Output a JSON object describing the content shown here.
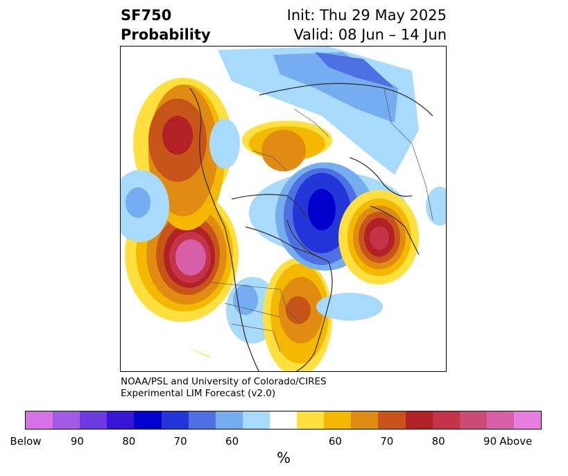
{
  "header": {
    "variable": "SF750",
    "product": "Probability",
    "init": "Init: Thu 29 May 2025",
    "valid": "Valid: 08 Jun – 14 Jun"
  },
  "credit": {
    "line1": "NOAA/PSL and University of Colorado/CIRES",
    "line2": "Experimental LIM Forecast (v2.0)"
  },
  "colorbar": {
    "colors": [
      "#d672e6",
      "#a25ce3",
      "#6d3ae0",
      "#3915d8",
      "#0000cd",
      "#2536d8",
      "#4d70e2",
      "#74aef1",
      "#a8dafb",
      "#ffffff",
      "#ffe03e",
      "#f4b800",
      "#e08c12",
      "#c75519",
      "#b22126",
      "#c43449",
      "#cc4c78",
      "#d860a8",
      "#e77ee0"
    ],
    "labels": [
      "Below",
      "90",
      "80",
      "70",
      "60",
      "60",
      "70",
      "80",
      "90",
      "Above"
    ],
    "unit": "%"
  },
  "map": {
    "projection": "north-polar-stereographic",
    "features": [
      "coastlines",
      "country-borders",
      "state-borders"
    ],
    "anomalies": [
      {
        "region": "central-north-pacific",
        "sign": "above",
        "peak": "Above"
      },
      {
        "region": "gulf-of-alaska",
        "sign": "above",
        "peak": "80"
      },
      {
        "region": "eastern-united-states",
        "sign": "above",
        "peak": "70"
      },
      {
        "region": "northern-siberia",
        "sign": "above",
        "peak": "70"
      },
      {
        "region": "northeast-atlantic",
        "sign": "above",
        "peak": "90"
      },
      {
        "region": "greenland-arctic",
        "sign": "below",
        "peak": "80"
      },
      {
        "region": "barents-kara-sea",
        "sign": "below",
        "peak": "70"
      },
      {
        "region": "western-north-america",
        "sign": "below",
        "peak": "60"
      },
      {
        "region": "western-pacific",
        "sign": "below",
        "peak": "60"
      }
    ]
  }
}
